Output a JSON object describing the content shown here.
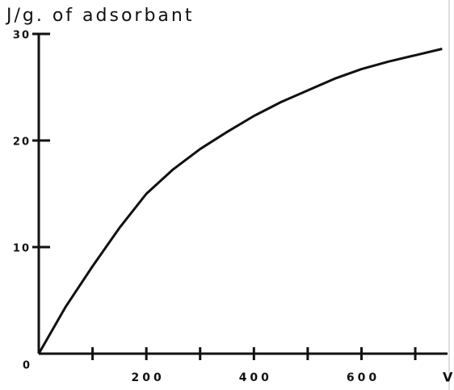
{
  "chart_data": {
    "type": "line",
    "title": "J/g. of adsorbant",
    "x_label": "V",
    "origin_label": "0",
    "x": [
      0,
      50,
      100,
      150,
      200,
      250,
      300,
      350,
      400,
      450,
      500,
      550,
      600,
      650,
      700,
      750
    ],
    "series": [
      {
        "color": "#111111",
        "values": [
          0,
          4.4,
          8.2,
          11.8,
          15,
          17.3,
          19.2,
          20.8,
          22.3,
          23.6,
          24.7,
          25.8,
          26.7,
          27.4,
          28,
          28.6
        ]
      }
    ],
    "xlim": [
      0,
      760
    ],
    "ylim": [
      0,
      30
    ],
    "xticks": [
      200,
      400,
      600
    ],
    "x_minor_ticks": [
      100,
      300,
      500,
      700
    ],
    "yticks": [
      10,
      20,
      30
    ]
  }
}
